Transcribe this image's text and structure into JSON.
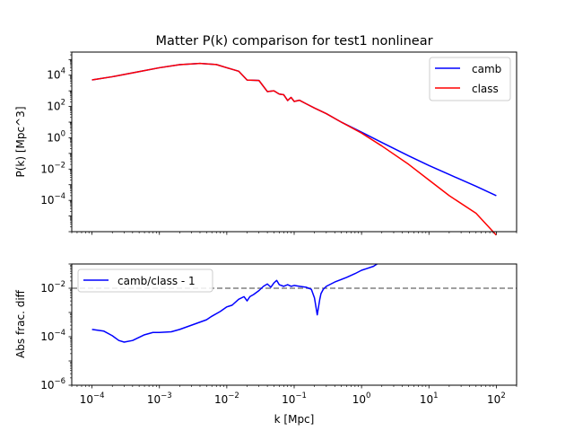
{
  "chart_data": [
    {
      "type": "line",
      "title": "Matter P(k) comparison for test1 nonlinear",
      "xlabel": "",
      "ylabel": "P(k) [Mpc^3]",
      "xscale": "log",
      "yscale": "log",
      "xlim": [
        5e-05,
        200
      ],
      "ylim": [
        1e-06,
        300000.0
      ],
      "yticks": [
        {
          "value": 10000.0,
          "label": "10^4"
        },
        {
          "value": 100.0,
          "label": "10^2"
        },
        {
          "value": 1,
          "label": "10^0"
        },
        {
          "value": 0.01,
          "label": "10^-2"
        },
        {
          "value": 0.0001,
          "label": "10^-4"
        }
      ],
      "grid": false,
      "legend_position": "upper right",
      "series": [
        {
          "name": "camb",
          "color": "#0000ff",
          "x": [
            0.0001,
            0.0002,
            0.0005,
            0.001,
            0.002,
            0.004,
            0.007,
            0.01,
            0.015,
            0.02,
            0.03,
            0.04,
            0.05,
            0.06,
            0.07,
            0.08,
            0.09,
            0.1,
            0.12,
            0.15,
            0.2,
            0.3,
            0.5,
            1,
            2,
            5,
            10,
            20,
            50,
            100
          ],
          "y": [
            5000,
            8000,
            17000,
            30000,
            47000,
            57000,
            48000,
            30000,
            18000,
            4900,
            4600,
            900,
            1000,
            620,
            560,
            240,
            380,
            210,
            250,
            150,
            80,
            35,
            10,
            2.3,
            0.5,
            0.07,
            0.017,
            0.0045,
            0.0008,
            0.0002
          ]
        },
        {
          "name": "class",
          "color": "#ff0000",
          "x": [
            0.0001,
            0.0002,
            0.0005,
            0.001,
            0.002,
            0.004,
            0.007,
            0.01,
            0.015,
            0.02,
            0.03,
            0.04,
            0.05,
            0.06,
            0.07,
            0.08,
            0.09,
            0.1,
            0.12,
            0.15,
            0.2,
            0.3,
            0.5,
            1,
            2,
            5,
            10,
            20,
            50,
            100
          ],
          "y": [
            5000,
            8000,
            17000,
            30000,
            47000,
            57000,
            48000,
            30000,
            18000,
            4900,
            4600,
            900,
            1000,
            620,
            560,
            240,
            380,
            210,
            250,
            150,
            80,
            35,
            10,
            2,
            0.3,
            0.02,
            0.002,
            0.0002,
            1.5e-05,
            6e-07
          ]
        }
      ]
    },
    {
      "type": "line",
      "title": "",
      "xlabel": "k [Mpc]",
      "ylabel": "Abs frac. diff",
      "xscale": "log",
      "yscale": "log",
      "xlim": [
        5e-05,
        200
      ],
      "ylim": [
        1e-06,
        0.1
      ],
      "xticks": [
        {
          "value": 0.0001,
          "label": "10^-4"
        },
        {
          "value": 0.001,
          "label": "10^-3"
        },
        {
          "value": 0.01,
          "label": "10^-2"
        },
        {
          "value": 0.1,
          "label": "10^-1"
        },
        {
          "value": 1,
          "label": "10^0"
        },
        {
          "value": 10,
          "label": "10^1"
        },
        {
          "value": 100,
          "label": "10^2"
        }
      ],
      "yticks": [
        {
          "value": 0.01,
          "label": "10^-2"
        },
        {
          "value": 0.0001,
          "label": "10^-4"
        },
        {
          "value": 1e-06,
          "label": "10^-6"
        }
      ],
      "grid": false,
      "legend_position": "upper left",
      "reference_line": {
        "y": 0.01,
        "color": "#808080",
        "style": "dashed"
      },
      "series": [
        {
          "name": "camb/class - 1",
          "color": "#0000ff",
          "x": [
            0.0001,
            0.00015,
            0.0002,
            0.00025,
            0.0003,
            0.0004,
            0.0006,
            0.0008,
            0.001,
            0.0015,
            0.002,
            0.003,
            0.004,
            0.005,
            0.006,
            0.008,
            0.01,
            0.012,
            0.015,
            0.018,
            0.02,
            0.022,
            0.025,
            0.03,
            0.035,
            0.04,
            0.045,
            0.05,
            0.055,
            0.06,
            0.07,
            0.08,
            0.09,
            0.1,
            0.12,
            0.15,
            0.18,
            0.2,
            0.22,
            0.24,
            0.25,
            0.27,
            0.3,
            0.4,
            0.6,
            0.8,
            1,
            1.2,
            1.5,
            1.7
          ],
          "y": [
            0.0002,
            0.00017,
            0.00011,
            7e-05,
            6e-05,
            7e-05,
            0.00012,
            0.00015,
            0.00015,
            0.00016,
            0.0002,
            0.0003,
            0.0004,
            0.0005,
            0.0007,
            0.0011,
            0.0017,
            0.002,
            0.0035,
            0.0045,
            0.003,
            0.0045,
            0.0055,
            0.008,
            0.012,
            0.015,
            0.011,
            0.0165,
            0.021,
            0.014,
            0.012,
            0.014,
            0.012,
            0.013,
            0.012,
            0.011,
            0.009,
            0.004,
            0.0008,
            0.0035,
            0.006,
            0.009,
            0.012,
            0.018,
            0.028,
            0.04,
            0.055,
            0.065,
            0.08,
            0.1
          ]
        }
      ]
    }
  ]
}
